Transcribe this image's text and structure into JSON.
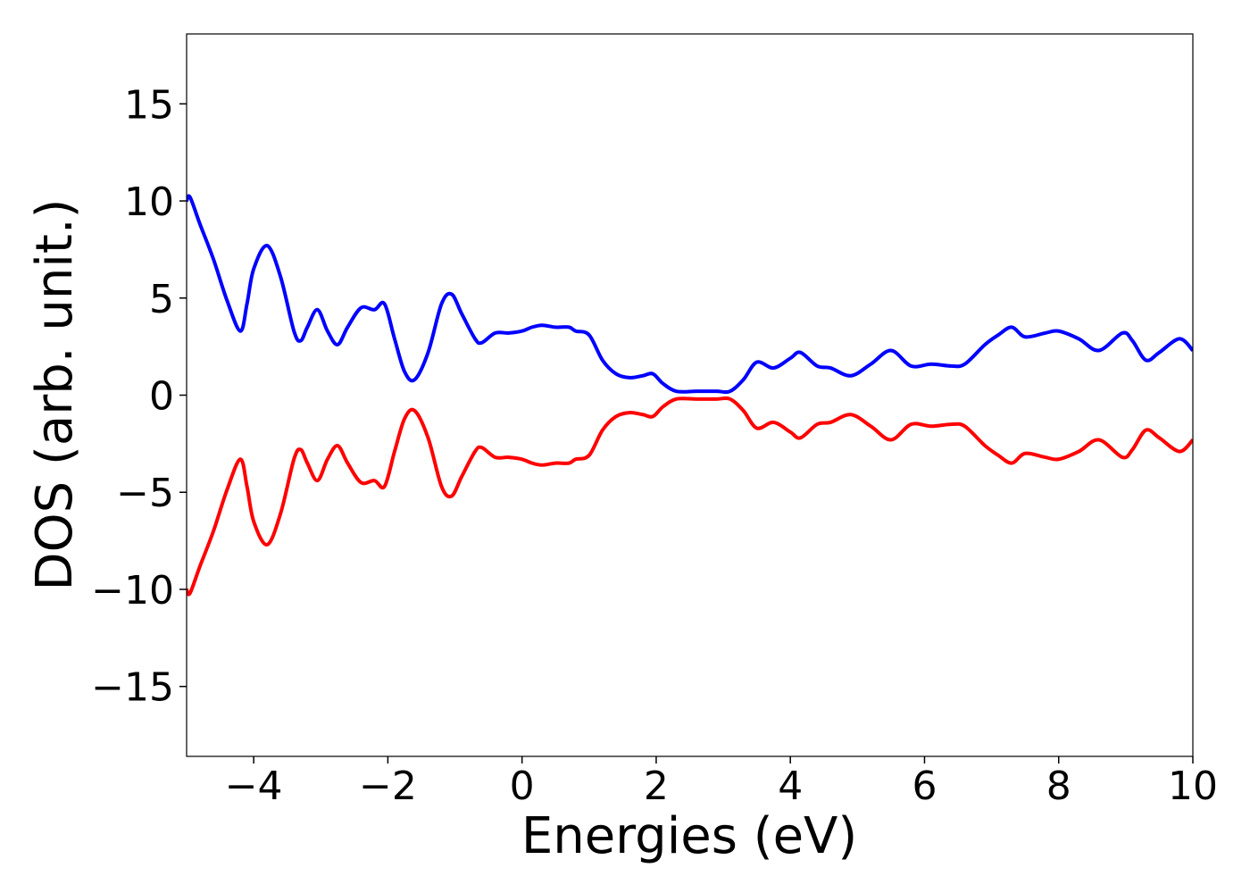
{
  "chart_data": {
    "type": "line",
    "xlabel": "Energies (eV)",
    "ylabel": "DOS (arb. unit.)",
    "x": [
      -5,
      -4.95,
      -4.8,
      -4.6,
      -4.4,
      -4.2,
      -4.1,
      -4.0,
      -3.8,
      -3.6,
      -3.4,
      -3.3,
      -3.2,
      -3.05,
      -2.9,
      -2.75,
      -2.6,
      -2.4,
      -2.2,
      -2.05,
      -1.9,
      -1.75,
      -1.6,
      -1.4,
      -1.2,
      -1.05,
      -0.9,
      -0.7,
      -0.6,
      -0.4,
      -0.2,
      0,
      0.15,
      0.3,
      0.5,
      0.7,
      0.8,
      1.0,
      1.2,
      1.4,
      1.6,
      1.8,
      1.95,
      2.1,
      2.3,
      2.6,
      2.9,
      3.1,
      3.3,
      3.5,
      3.75,
      4.0,
      4.15,
      4.4,
      4.6,
      4.9,
      5.2,
      5.5,
      5.8,
      6.1,
      6.4,
      6.6,
      6.9,
      7.1,
      7.3,
      7.5,
      7.8,
      8.0,
      8.3,
      8.6,
      8.95,
      9.1,
      9.3,
      9.5,
      9.8,
      10
    ],
    "series": [
      {
        "color": "#0000ff",
        "values": [
          10.0,
          10.2,
          8.8,
          7.0,
          4.9,
          3.3,
          4.7,
          6.5,
          7.7,
          6.1,
          3.3,
          2.8,
          3.5,
          4.4,
          3.3,
          2.6,
          3.5,
          4.5,
          4.4,
          4.7,
          2.9,
          1.2,
          0.8,
          2.2,
          4.7,
          5.2,
          4.2,
          2.9,
          2.7,
          3.2,
          3.2,
          3.3,
          3.5,
          3.6,
          3.5,
          3.5,
          3.3,
          3.1,
          1.8,
          1.1,
          0.9,
          1.0,
          1.1,
          0.6,
          0.2,
          0.2,
          0.2,
          0.2,
          0.8,
          1.7,
          1.4,
          1.9,
          2.2,
          1.5,
          1.4,
          1.0,
          1.6,
          2.3,
          1.5,
          1.6,
          1.5,
          1.6,
          2.6,
          3.1,
          3.5,
          3.0,
          3.2,
          3.3,
          2.9,
          2.3,
          3.2,
          2.8,
          1.8,
          2.2,
          2.9,
          2.3
        ]
      },
      {
        "color": "#ff0000",
        "values": [
          -10.0,
          -10.2,
          -8.8,
          -7.0,
          -4.9,
          -3.3,
          -4.7,
          -6.5,
          -7.7,
          -6.1,
          -3.3,
          -2.8,
          -3.5,
          -4.4,
          -3.3,
          -2.6,
          -3.5,
          -4.5,
          -4.4,
          -4.7,
          -2.9,
          -1.2,
          -0.8,
          -2.2,
          -4.7,
          -5.2,
          -4.2,
          -2.9,
          -2.7,
          -3.2,
          -3.2,
          -3.3,
          -3.5,
          -3.6,
          -3.5,
          -3.5,
          -3.3,
          -3.1,
          -1.8,
          -1.1,
          -0.9,
          -1.0,
          -1.1,
          -0.6,
          -0.2,
          -0.2,
          -0.2,
          -0.2,
          -0.8,
          -1.7,
          -1.4,
          -1.9,
          -2.2,
          -1.5,
          -1.4,
          -1.0,
          -1.6,
          -2.3,
          -1.5,
          -1.6,
          -1.5,
          -1.6,
          -2.6,
          -3.1,
          -3.5,
          -3.0,
          -3.2,
          -3.3,
          -2.9,
          -2.3,
          -3.2,
          -2.8,
          -1.8,
          -2.2,
          -2.9,
          -2.3
        ]
      }
    ],
    "xlim": [
      -5,
      10
    ],
    "xticks": [
      {
        "value": -4,
        "label": "−4"
      },
      {
        "value": -2,
        "label": "−2"
      },
      0,
      2,
      4,
      6,
      8,
      10
    ],
    "ylim": [
      -18.6,
      18.6
    ],
    "yticks": [
      {
        "value": -15,
        "label": "−15"
      },
      {
        "value": -10,
        "label": "−10"
      },
      {
        "value": -5,
        "label": "−5"
      },
      0,
      5,
      10,
      15
    ],
    "grid": false
  }
}
